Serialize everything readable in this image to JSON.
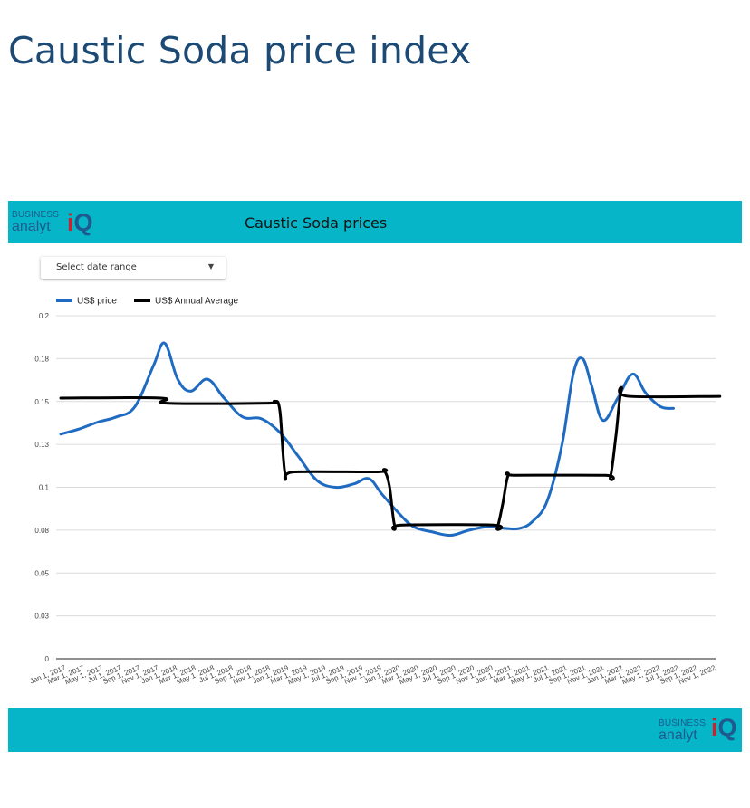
{
  "page": {
    "title": "Caustic Soda price index"
  },
  "header": {
    "brand_line1": "BUSINESS",
    "brand_line2": "analyt",
    "brand_iq_i": "i",
    "brand_iq_q": "Q",
    "title": "Caustic Soda prices"
  },
  "controls": {
    "date_range_label": "Select date range"
  },
  "footer": {
    "brand_line1": "BUSINESS",
    "brand_line2": "analyt",
    "brand_iq_i": "i",
    "brand_iq_q": "Q"
  },
  "colors": {
    "price_line": "#1f6bc1",
    "average_line": "#000000",
    "banner": "#07b5c8",
    "title": "#1c4a75"
  },
  "chart_data": {
    "type": "line",
    "title": "Caustic Soda prices",
    "xlabel": "",
    "ylabel": "",
    "ylim": [
      0,
      0.2
    ],
    "y_ticks": [
      "0",
      "0.03",
      "0.05",
      "0.08",
      "0.1",
      "0.13",
      "0.15",
      "0.18",
      "0.2"
    ],
    "y_tick_values": [
      0,
      0.025,
      0.05,
      0.075,
      0.1,
      0.125,
      0.15,
      0.175,
      0.2
    ],
    "grid": true,
    "legend": "top-left",
    "categories": [
      "Jan 1, 2017",
      "Mar 1, 2017",
      "May 1, 2017",
      "Jul 1, 2017",
      "Sep 1, 2017",
      "Nov 1, 2017",
      "Jan 1, 2018",
      "Mar 1, 2018",
      "May 1, 2018",
      "Jul 1, 2018",
      "Sep 1, 2018",
      "Nov 1, 2018",
      "Jan 1, 2019",
      "Mar 1, 2019",
      "May 1, 2019",
      "Jul 1, 2019",
      "Sep 1, 2019",
      "Nov 1, 2019",
      "Jan 1, 2020",
      "Mar 1, 2020",
      "May 1, 2020",
      "Jul 1, 2020",
      "Sep 1, 2020",
      "Nov 1, 2020",
      "Jan 1, 2021",
      "Mar 1, 2021",
      "May 1, 2021",
      "Jul 1, 2021",
      "Sep 1, 2021",
      "Nov 1, 2021",
      "Jan 1, 2022",
      "Mar 1, 2022",
      "May 1, 2022",
      "Jul 1, 2022",
      "Sep 1, 2022",
      "Nov 1, 2022"
    ],
    "series": [
      {
        "name": "US$ price",
        "values": [
          {
            "x": 0,
            "y": 0.131
          },
          {
            "x": 1,
            "y": 0.134
          },
          {
            "x": 2,
            "y": 0.138
          },
          {
            "x": 3,
            "y": 0.141
          },
          {
            "x": 4,
            "y": 0.147
          },
          {
            "x": 5,
            "y": 0.171
          },
          {
            "x": 5.6,
            "y": 0.184
          },
          {
            "x": 6.3,
            "y": 0.163
          },
          {
            "x": 7,
            "y": 0.156
          },
          {
            "x": 7.9,
            "y": 0.163
          },
          {
            "x": 8.8,
            "y": 0.152
          },
          {
            "x": 9.8,
            "y": 0.141
          },
          {
            "x": 10.8,
            "y": 0.14
          },
          {
            "x": 11.8,
            "y": 0.132
          },
          {
            "x": 12.8,
            "y": 0.118
          },
          {
            "x": 13.8,
            "y": 0.104
          },
          {
            "x": 14.8,
            "y": 0.1
          },
          {
            "x": 15.8,
            "y": 0.102
          },
          {
            "x": 16.6,
            "y": 0.105
          },
          {
            "x": 17.3,
            "y": 0.096
          },
          {
            "x": 18.2,
            "y": 0.085
          },
          {
            "x": 19,
            "y": 0.077
          },
          {
            "x": 20,
            "y": 0.074
          },
          {
            "x": 21,
            "y": 0.072
          },
          {
            "x": 22,
            "y": 0.075
          },
          {
            "x": 23,
            "y": 0.077
          },
          {
            "x": 24,
            "y": 0.076
          },
          {
            "x": 24.7,
            "y": 0.076
          },
          {
            "x": 25.4,
            "y": 0.08
          },
          {
            "x": 26.2,
            "y": 0.092
          },
          {
            "x": 27,
            "y": 0.125
          },
          {
            "x": 27.6,
            "y": 0.166
          },
          {
            "x": 28.1,
            "y": 0.175
          },
          {
            "x": 28.6,
            "y": 0.159
          },
          {
            "x": 29.2,
            "y": 0.139
          },
          {
            "x": 30,
            "y": 0.152
          },
          {
            "x": 30.8,
            "y": 0.166
          },
          {
            "x": 31.5,
            "y": 0.155
          },
          {
            "x": 32.3,
            "y": 0.147
          },
          {
            "x": 33,
            "y": 0.146
          }
        ]
      },
      {
        "name": "US$ Annual Average",
        "values": [
          {
            "x": 0,
            "y": 0.152
          },
          {
            "x": 5.4,
            "y": 0.152
          },
          {
            "x": 5.7,
            "y": 0.149
          },
          {
            "x": 11.1,
            "y": 0.149
          },
          {
            "x": 11.5,
            "y": 0.15
          },
          {
            "x": 11.8,
            "y": 0.145
          },
          {
            "x": 12.1,
            "y": 0.107
          },
          {
            "x": 12.6,
            "y": 0.109
          },
          {
            "x": 17.1,
            "y": 0.109
          },
          {
            "x": 17.4,
            "y": 0.11
          },
          {
            "x": 17.7,
            "y": 0.101
          },
          {
            "x": 18.0,
            "y": 0.077
          },
          {
            "x": 18.4,
            "y": 0.078
          },
          {
            "x": 23.3,
            "y": 0.078
          },
          {
            "x": 23.5,
            "y": 0.076
          },
          {
            "x": 23.8,
            "y": 0.09
          },
          {
            "x": 24.1,
            "y": 0.107
          },
          {
            "x": 24.5,
            "y": 0.107
          },
          {
            "x": 29.3,
            "y": 0.107
          },
          {
            "x": 29.6,
            "y": 0.106
          },
          {
            "x": 29.9,
            "y": 0.13
          },
          {
            "x": 30.2,
            "y": 0.157
          },
          {
            "x": 30.6,
            "y": 0.153
          },
          {
            "x": 35.5,
            "y": 0.153
          }
        ]
      }
    ]
  }
}
